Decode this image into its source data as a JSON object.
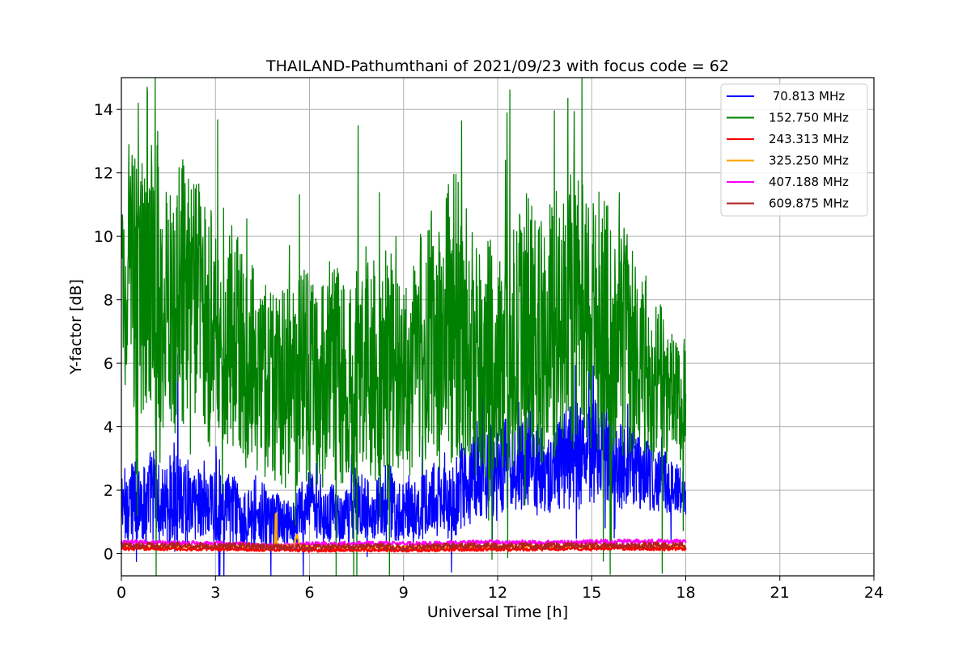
{
  "chart_data": {
    "type": "line",
    "title": "THAILAND-Pathumthani of 2021/09/23 with focus code = 62",
    "xlabel": "Universal Time [h]",
    "ylabel": "Y-factor [dB]",
    "xlim": [
      0,
      24
    ],
    "ylim": [
      -0.7,
      15.0
    ],
    "xticks": [
      0,
      3,
      6,
      9,
      12,
      15,
      18,
      21,
      24
    ],
    "yticks": [
      0,
      2,
      4,
      6,
      8,
      10,
      12,
      14
    ],
    "grid": true,
    "legend_position": "top-right",
    "series": [
      {
        "name": " 70.813 MHz",
        "color": "#0000ff",
        "x": [
          0,
          0.25,
          0.5,
          0.75,
          1,
          1.25,
          1.5,
          1.75,
          2,
          2.25,
          2.5,
          2.75,
          3,
          3.25,
          3.5,
          3.75,
          4,
          4.25,
          4.5,
          4.75,
          5,
          5.25,
          5.5,
          5.75,
          6,
          6.25,
          6.5,
          6.75,
          7,
          7.25,
          7.5,
          7.75,
          8,
          8.25,
          8.5,
          8.75,
          9,
          9.25,
          9.5,
          9.75,
          10,
          10.25,
          10.5,
          10.75,
          11,
          11.25,
          11.5,
          11.75,
          12,
          12.25,
          12.5,
          12.75,
          13,
          13.25,
          13.5,
          13.75,
          14,
          14.25,
          14.5,
          14.75,
          15,
          15.25,
          15.5,
          15.75,
          16,
          16.25,
          16.5,
          16.75,
          17,
          17.25,
          17.5,
          17.75,
          18
        ],
        "values": [
          1.5,
          1.6,
          1.7,
          1.5,
          2.0,
          1.4,
          1.6,
          2.1,
          1.8,
          1.5,
          1.7,
          1.4,
          1.6,
          1.3,
          1.5,
          1.2,
          1.0,
          1.4,
          1.2,
          1.0,
          1.1,
          0.9,
          1.0,
          1.3,
          1.5,
          1.2,
          1.1,
          1.3,
          1.0,
          1.2,
          1.4,
          1.6,
          1.3,
          1.5,
          1.7,
          1.5,
          1.3,
          1.5,
          1.4,
          1.6,
          1.8,
          1.5,
          1.7,
          2.0,
          2.3,
          2.5,
          2.7,
          2.6,
          2.4,
          2.8,
          2.6,
          2.7,
          2.9,
          2.8,
          2.6,
          2.5,
          2.9,
          3.0,
          3.1,
          3.0,
          3.2,
          3.3,
          3.1,
          2.9,
          2.7,
          2.8,
          2.6,
          2.5,
          2.4,
          2.3,
          2.2,
          2.0,
          1.8
        ],
        "amplitude": [
          1.2,
          1.3,
          1.4,
          1.3,
          1.6,
          1.2,
          1.3,
          1.8,
          1.5,
          1.2,
          1.3,
          1.1,
          1.3,
          1.0,
          1.2,
          1.0,
          0.9,
          1.3,
          1.1,
          0.9,
          0.8,
          0.7,
          0.8,
          1.0,
          1.2,
          0.9,
          0.8,
          1.0,
          0.8,
          0.9,
          1.0,
          1.1,
          0.9,
          1.0,
          1.2,
          1.1,
          0.9,
          1.0,
          1.0,
          1.1,
          1.2,
          1.1,
          1.3,
          1.4,
          1.6,
          1.7,
          1.6,
          1.5,
          1.4,
          1.5,
          1.4,
          1.4,
          1.5,
          1.4,
          1.3,
          1.3,
          1.5,
          1.6,
          1.7,
          1.6,
          1.7,
          1.6,
          1.5,
          1.4,
          1.3,
          1.3,
          1.2,
          1.1,
          1.1,
          1.0,
          1.0,
          0.9,
          0.8
        ]
      },
      {
        "name": "152.750 MHz",
        "color": "#008000",
        "x": [
          0,
          0.25,
          0.5,
          0.75,
          1,
          1.25,
          1.5,
          1.75,
          2,
          2.25,
          2.5,
          2.75,
          3,
          3.25,
          3.5,
          3.75,
          4,
          4.25,
          4.5,
          4.75,
          5,
          5.25,
          5.5,
          5.75,
          6,
          6.25,
          6.5,
          6.75,
          7,
          7.25,
          7.5,
          7.75,
          8,
          8.25,
          8.5,
          8.75,
          9,
          9.25,
          9.5,
          9.75,
          10,
          10.25,
          10.5,
          10.75,
          11,
          11.25,
          11.5,
          11.75,
          12,
          12.25,
          12.5,
          12.75,
          13,
          13.25,
          13.5,
          13.75,
          14,
          14.25,
          14.5,
          14.75,
          15,
          15.25,
          15.5,
          15.75,
          16,
          16.25,
          16.5,
          16.75,
          17,
          17.25,
          17.5,
          17.75,
          18
        ],
        "values": [
          8.5,
          9.0,
          8.2,
          7.8,
          8.8,
          8.0,
          7.5,
          8.3,
          8.0,
          8.5,
          7.6,
          7.2,
          7.0,
          7.3,
          6.8,
          6.4,
          6.0,
          5.8,
          5.5,
          5.3,
          5.0,
          5.2,
          5.5,
          5.8,
          5.4,
          5.1,
          5.6,
          5.9,
          5.3,
          5.0,
          5.7,
          6.2,
          6.0,
          5.8,
          6.2,
          5.9,
          5.5,
          6.0,
          6.5,
          6.8,
          6.6,
          7.0,
          7.6,
          7.2,
          7.0,
          6.6,
          6.4,
          6.2,
          6.0,
          6.3,
          6.6,
          6.9,
          7.2,
          7.0,
          6.8,
          7.1,
          7.4,
          7.6,
          7.8,
          7.5,
          7.3,
          7.1,
          7.4,
          7.0,
          6.8,
          6.5,
          6.2,
          6.0,
          5.6,
          5.3,
          5.0,
          4.8,
          4.5
        ],
        "amplitude": [
          4.0,
          4.2,
          4.5,
          4.0,
          4.8,
          4.3,
          4.0,
          4.5,
          4.4,
          4.2,
          4.0,
          3.8,
          3.8,
          3.7,
          3.6,
          3.5,
          3.4,
          3.2,
          3.2,
          3.1,
          3.2,
          3.3,
          3.5,
          3.6,
          3.4,
          3.3,
          3.4,
          3.6,
          3.3,
          3.2,
          3.5,
          3.8,
          3.7,
          3.5,
          3.6,
          3.4,
          3.2,
          3.5,
          3.8,
          4.0,
          4.2,
          4.4,
          4.8,
          4.6,
          4.5,
          4.2,
          4.0,
          3.9,
          3.7,
          3.8,
          4.0,
          4.2,
          4.3,
          4.1,
          4.0,
          4.2,
          4.3,
          4.4,
          4.5,
          4.3,
          4.2,
          4.0,
          4.1,
          3.9,
          3.7,
          3.5,
          3.2,
          3.0,
          2.7,
          2.4,
          2.2,
          2.0,
          2.0
        ]
      },
      {
        "name": "243.313 MHz",
        "color": "#ff0000",
        "x": [
          0,
          1,
          2,
          3,
          4,
          5,
          6,
          7,
          8,
          9,
          10,
          11,
          12,
          13,
          14,
          15,
          16,
          17,
          18
        ],
        "values": [
          0.15,
          0.16,
          0.14,
          0.15,
          0.13,
          0.12,
          0.1,
          0.11,
          0.12,
          0.1,
          0.12,
          0.13,
          0.13,
          0.14,
          0.15,
          0.15,
          0.16,
          0.15,
          0.15
        ],
        "amplitude": [
          0.05,
          0.05,
          0.05,
          0.05,
          0.05,
          0.05,
          0.05,
          0.05,
          0.05,
          0.05,
          0.05,
          0.05,
          0.05,
          0.05,
          0.05,
          0.05,
          0.05,
          0.05,
          0.05
        ]
      },
      {
        "name": "325.250 MHz",
        "color": "#ffa500",
        "x": [
          0,
          1,
          2,
          3,
          4,
          4.9,
          4.93,
          4.96,
          5,
          5.5,
          5.6,
          5.7,
          6,
          7,
          8,
          9,
          10,
          11,
          12,
          13,
          14,
          15,
          16,
          17,
          18
        ],
        "values": [
          0.2,
          0.2,
          0.22,
          0.22,
          0.2,
          0.2,
          1.75,
          0.3,
          0.2,
          0.25,
          0.6,
          0.2,
          0.2,
          0.2,
          0.2,
          0.2,
          0.2,
          0.22,
          0.22,
          0.22,
          0.22,
          0.22,
          0.22,
          0.22,
          0.22
        ],
        "amplitude": [
          0.05,
          0.05,
          0.05,
          0.05,
          0.05,
          0.0,
          0.0,
          0.0,
          0.05,
          0.05,
          0.0,
          0.05,
          0.05,
          0.05,
          0.05,
          0.05,
          0.05,
          0.05,
          0.05,
          0.05,
          0.05,
          0.05,
          0.05,
          0.05,
          0.05
        ]
      },
      {
        "name": "407.188 MHz",
        "color": "#ff00ff",
        "x": [
          0,
          1,
          2,
          3,
          4,
          5,
          6,
          7,
          8,
          9,
          10,
          11,
          12,
          13,
          14,
          15,
          16,
          17,
          18
        ],
        "values": [
          0.35,
          0.36,
          0.33,
          0.32,
          0.3,
          0.25,
          0.3,
          0.32,
          0.33,
          0.3,
          0.32,
          0.35,
          0.36,
          0.35,
          0.34,
          0.37,
          0.38,
          0.38,
          0.38
        ],
        "amplitude": [
          0.07,
          0.07,
          0.07,
          0.07,
          0.07,
          0.07,
          0.07,
          0.07,
          0.07,
          0.07,
          0.07,
          0.07,
          0.07,
          0.07,
          0.07,
          0.07,
          0.07,
          0.07,
          0.07
        ]
      },
      {
        "name": "609.875 MHz",
        "color": "#b22222",
        "x": [
          0,
          1,
          2,
          3,
          4,
          5,
          6,
          7,
          8,
          9,
          10,
          11,
          12,
          13,
          14,
          15,
          16,
          17,
          18
        ],
        "values": [
          0.25,
          0.26,
          0.25,
          0.24,
          0.24,
          0.2,
          0.2,
          0.22,
          0.23,
          0.2,
          0.22,
          0.24,
          0.24,
          0.24,
          0.25,
          0.26,
          0.27,
          0.26,
          0.26
        ],
        "amplitude": [
          0.1,
          0.1,
          0.1,
          0.1,
          0.1,
          0.1,
          0.1,
          0.1,
          0.1,
          0.1,
          0.1,
          0.1,
          0.1,
          0.1,
          0.1,
          0.1,
          0.1,
          0.1,
          0.1
        ]
      }
    ]
  }
}
